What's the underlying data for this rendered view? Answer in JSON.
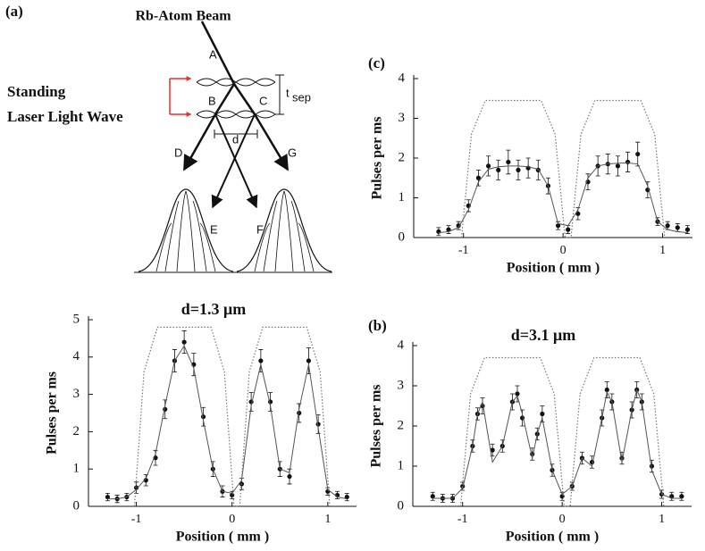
{
  "diagram": {
    "panel_label": "(a)",
    "beam_label": "Rb-Atom Beam",
    "wave_label_1": "Standing",
    "wave_label_2": "Laser Light Wave",
    "beam_labels": [
      "A",
      "B",
      "C",
      "D",
      "E",
      "F",
      "G"
    ],
    "spacing_label": "d",
    "time_label": "t",
    "time_subscript": "sep"
  },
  "chart_data": [
    {
      "type": "scatter",
      "panel_label": "(c)",
      "xlabel": "Position ( mm )",
      "ylabel": "Pulses  per ms",
      "xlim": [
        -1.5,
        1.3
      ],
      "xticks": [
        -1,
        0,
        1
      ],
      "ylim": [
        0,
        4
      ],
      "yticks": [
        0,
        1,
        2,
        3,
        4
      ],
      "series": [
        {
          "style": "points",
          "color": "#111111",
          "x": [
            -1.25,
            -1.15,
            -1.05,
            -0.95,
            -0.85,
            -0.75,
            -0.65,
            -0.55,
            -0.45,
            -0.35,
            -0.25,
            -0.15,
            -0.05,
            0.05,
            0.15,
            0.25,
            0.35,
            0.45,
            0.55,
            0.65,
            0.75,
            0.85,
            0.95,
            1.05,
            1.15,
            1.25
          ],
          "values": [
            0.15,
            0.2,
            0.3,
            0.8,
            1.5,
            1.8,
            1.7,
            1.9,
            1.7,
            1.75,
            1.7,
            1.3,
            0.3,
            0.2,
            0.6,
            1.4,
            1.8,
            1.85,
            1.8,
            1.9,
            2.1,
            1.2,
            0.4,
            0.3,
            0.25,
            0.2
          ],
          "errors": [
            0.1,
            0.1,
            0.1,
            0.15,
            0.2,
            0.25,
            0.25,
            0.3,
            0.25,
            0.25,
            0.25,
            0.2,
            0.1,
            0.1,
            0.15,
            0.2,
            0.25,
            0.25,
            0.25,
            0.25,
            0.3,
            0.2,
            0.1,
            0.1,
            0.1,
            0.1
          ]
        },
        {
          "style": "line",
          "color": "#555555",
          "x": [
            -1.25,
            -1.15,
            -1.05,
            -0.95,
            -0.85,
            -0.75,
            -0.65,
            -0.55,
            -0.45,
            -0.35,
            -0.25,
            -0.15,
            -0.05,
            0.05,
            0.15,
            0.25,
            0.35,
            0.45,
            0.55,
            0.65,
            0.75,
            0.85,
            0.95,
            1.05,
            1.15,
            1.25
          ],
          "values": [
            0.12,
            0.15,
            0.25,
            0.7,
            1.4,
            1.72,
            1.78,
            1.8,
            1.8,
            1.78,
            1.72,
            1.3,
            0.35,
            0.3,
            0.7,
            1.5,
            1.8,
            1.85,
            1.87,
            1.88,
            1.85,
            1.3,
            0.4,
            0.2,
            0.15,
            0.12
          ]
        },
        {
          "style": "dotted",
          "color": "#777777",
          "x": [
            -1.02,
            -0.92,
            -0.78,
            -0.22,
            -0.08,
            0.02,
            0.08,
            0.18,
            0.32,
            0.78,
            0.92,
            1.02
          ],
          "values": [
            0,
            2.6,
            3.45,
            3.45,
            2.6,
            0,
            0,
            2.6,
            3.45,
            3.45,
            2.6,
            0
          ]
        }
      ]
    },
    {
      "type": "scatter",
      "title": "d=1.3 μm",
      "xlabel": "Position ( mm )",
      "ylabel": "Pulses per ms",
      "xlim": [
        -1.5,
        1.3
      ],
      "xticks": [
        -1,
        0,
        1
      ],
      "ylim": [
        0,
        5
      ],
      "yticks": [
        0,
        1,
        2,
        3,
        4,
        5
      ],
      "series": [
        {
          "style": "points",
          "color": "#111111",
          "x": [
            -1.3,
            -1.2,
            -1.1,
            -1.0,
            -0.9,
            -0.8,
            -0.7,
            -0.6,
            -0.5,
            -0.4,
            -0.3,
            -0.2,
            -0.1,
            0.0,
            0.1,
            0.2,
            0.3,
            0.4,
            0.5,
            0.6,
            0.7,
            0.8,
            0.9,
            1.0,
            1.1,
            1.2
          ],
          "values": [
            0.25,
            0.2,
            0.25,
            0.5,
            0.7,
            1.3,
            2.6,
            3.9,
            4.4,
            3.8,
            2.4,
            1.0,
            0.4,
            0.3,
            0.6,
            2.8,
            3.9,
            2.8,
            1.0,
            0.8,
            2.5,
            3.9,
            2.2,
            0.4,
            0.3,
            0.25
          ],
          "errors": [
            0.1,
            0.1,
            0.1,
            0.15,
            0.15,
            0.2,
            0.25,
            0.3,
            0.3,
            0.3,
            0.25,
            0.2,
            0.15,
            0.1,
            0.15,
            0.25,
            0.3,
            0.25,
            0.2,
            0.2,
            0.25,
            0.35,
            0.25,
            0.1,
            0.1,
            0.1
          ]
        },
        {
          "style": "line",
          "color": "#555555",
          "x": [
            -1.3,
            -1.2,
            -1.1,
            -1.0,
            -0.9,
            -0.8,
            -0.7,
            -0.6,
            -0.5,
            -0.4,
            -0.3,
            -0.2,
            -0.1,
            0.0,
            0.1,
            0.2,
            0.3,
            0.4,
            0.5,
            0.6,
            0.7,
            0.8,
            0.9,
            1.0,
            1.1,
            1.2
          ],
          "values": [
            0.2,
            0.2,
            0.25,
            0.45,
            0.75,
            1.4,
            2.7,
            3.9,
            4.3,
            3.7,
            2.3,
            1.0,
            0.4,
            0.35,
            0.7,
            2.7,
            3.8,
            2.7,
            1.0,
            0.9,
            2.6,
            3.8,
            2.1,
            0.45,
            0.25,
            0.2
          ]
        },
        {
          "style": "dotted",
          "color": "#777777",
          "x": [
            -1.02,
            -0.92,
            -0.78,
            -0.22,
            -0.08,
            0.02,
            0.08,
            0.18,
            0.32,
            0.78,
            0.92,
            1.02
          ],
          "values": [
            0,
            3.6,
            4.8,
            4.8,
            3.6,
            0,
            0,
            3.6,
            4.8,
            4.8,
            3.6,
            0
          ]
        }
      ]
    },
    {
      "type": "scatter",
      "panel_label": "(b)",
      "title": "d=3.1 μm",
      "xlabel": "Position ( mm )",
      "ylabel": "Pulses per ms",
      "xlim": [
        -1.5,
        1.3
      ],
      "xticks": [
        -1,
        0,
        1
      ],
      "ylim": [
        0,
        4
      ],
      "yticks": [
        0,
        1,
        2,
        3,
        4
      ],
      "series": [
        {
          "style": "points",
          "color": "#111111",
          "x": [
            -1.3,
            -1.2,
            -1.1,
            -1.0,
            -0.9,
            -0.85,
            -0.8,
            -0.7,
            -0.6,
            -0.5,
            -0.45,
            -0.4,
            -0.3,
            -0.25,
            -0.2,
            -0.1,
            0.0,
            0.1,
            0.2,
            0.3,
            0.4,
            0.45,
            0.5,
            0.6,
            0.7,
            0.75,
            0.8,
            0.9,
            1.0,
            1.1,
            1.2
          ],
          "values": [
            0.25,
            0.2,
            0.2,
            0.5,
            1.5,
            2.3,
            2.5,
            1.4,
            1.5,
            2.6,
            2.8,
            2.2,
            1.3,
            1.8,
            2.3,
            0.9,
            0.25,
            0.5,
            1.2,
            1.1,
            2.2,
            2.9,
            2.6,
            1.2,
            2.4,
            2.9,
            2.6,
            1.0,
            0.3,
            0.25,
            0.25
          ],
          "errors": [
            0.1,
            0.1,
            0.1,
            0.1,
            0.15,
            0.15,
            0.2,
            0.15,
            0.15,
            0.2,
            0.2,
            0.2,
            0.15,
            0.15,
            0.2,
            0.15,
            0.1,
            0.1,
            0.15,
            0.15,
            0.2,
            0.2,
            0.2,
            0.15,
            0.2,
            0.2,
            0.2,
            0.15,
            0.1,
            0.1,
            0.1
          ]
        },
        {
          "style": "line",
          "color": "#555555",
          "x": [
            -1.3,
            -1.2,
            -1.1,
            -1.0,
            -0.9,
            -0.85,
            -0.8,
            -0.7,
            -0.6,
            -0.5,
            -0.45,
            -0.4,
            -0.3,
            -0.25,
            -0.2,
            -0.1,
            0.0,
            0.1,
            0.2,
            0.3,
            0.4,
            0.45,
            0.5,
            0.6,
            0.7,
            0.75,
            0.8,
            0.9,
            1.0,
            1.1,
            1.2
          ],
          "values": [
            0.2,
            0.2,
            0.2,
            0.45,
            1.5,
            2.3,
            2.6,
            1.1,
            1.5,
            2.6,
            2.75,
            2.3,
            1.2,
            1.8,
            2.2,
            0.9,
            0.3,
            0.5,
            1.2,
            1.0,
            2.2,
            2.85,
            2.6,
            1.1,
            2.4,
            2.9,
            2.6,
            0.9,
            0.3,
            0.2,
            0.2
          ]
        },
        {
          "style": "dotted",
          "color": "#777777",
          "x": [
            -1.02,
            -0.92,
            -0.78,
            -0.22,
            -0.08,
            0.02,
            0.08,
            0.18,
            0.32,
            0.78,
            0.92,
            1.02
          ],
          "values": [
            0,
            2.8,
            3.7,
            3.7,
            2.8,
            0,
            0,
            2.8,
            3.7,
            3.7,
            2.8,
            0
          ]
        }
      ]
    }
  ]
}
